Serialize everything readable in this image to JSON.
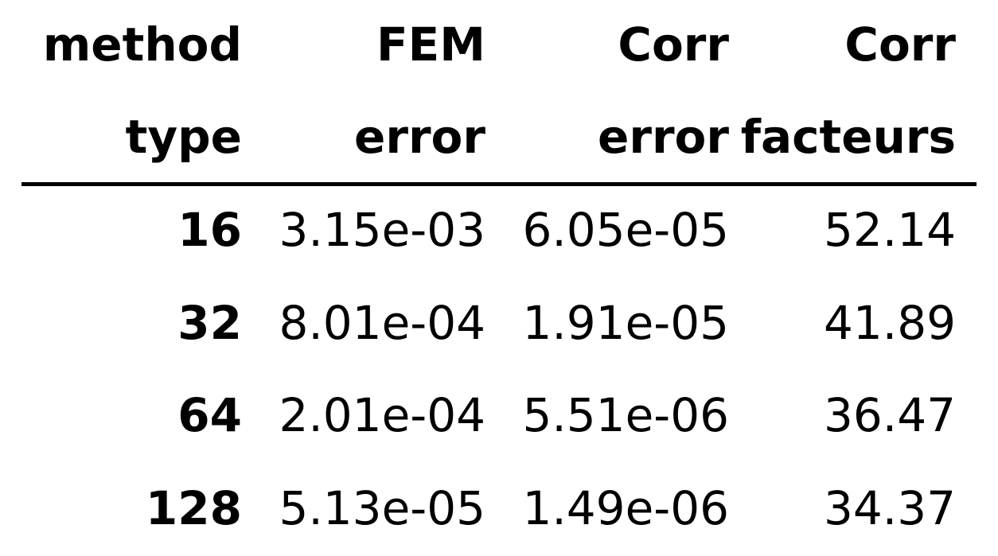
{
  "table": {
    "header_row1": [
      "method",
      "FEM",
      "Corr",
      "Corr"
    ],
    "header_row2": [
      "type",
      "error",
      "error",
      "facteurs"
    ],
    "rows": [
      [
        "16",
        "3.15e-03",
        "6.05e-05",
        "52.14"
      ],
      [
        "32",
        "8.01e-04",
        "1.91e-05",
        "41.89"
      ],
      [
        "64",
        "2.01e-04",
        "5.51e-06",
        "36.47"
      ],
      [
        "128",
        "5.13e-05",
        "1.49e-06",
        "34.37"
      ]
    ]
  }
}
